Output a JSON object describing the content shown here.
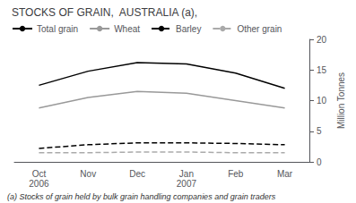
{
  "chart_data": {
    "type": "line",
    "title": "STOCKS OF GRAIN,  AUSTRALIA (a),",
    "y_label": "Million Tonnes",
    "annotations": [
      "(a) Stocks of grain held by bulk grain handling companies and grain traders"
    ],
    "categories": [
      "Oct\n2006",
      "Nov",
      "Dec",
      "Jan\n2007",
      "Feb",
      "Mar"
    ],
    "series": [
      {
        "name": "Total grain",
        "color": "#000000",
        "line_style": "solid",
        "values": [
          12.5,
          14.8,
          16.2,
          16.0,
          14.5,
          12.0
        ]
      },
      {
        "name": "Wheat",
        "color": "#999999",
        "line_style": "solid",
        "values": [
          8.8,
          10.5,
          11.5,
          11.2,
          10.0,
          8.8
        ]
      },
      {
        "name": "Barley",
        "color": "#000000",
        "line_style": "dashed",
        "values": [
          2.2,
          2.8,
          3.1,
          3.1,
          3.0,
          2.8
        ]
      },
      {
        "name": "Other grain",
        "color": "#aaaaaa",
        "line_style": "dashed",
        "values": [
          1.5,
          1.5,
          1.6,
          1.6,
          1.5,
          1.5
        ]
      }
    ],
    "ylim": [
      0,
      20
    ],
    "yticks": [
      0,
      5,
      10,
      15,
      20
    ],
    "grid": false,
    "legend": "top"
  }
}
